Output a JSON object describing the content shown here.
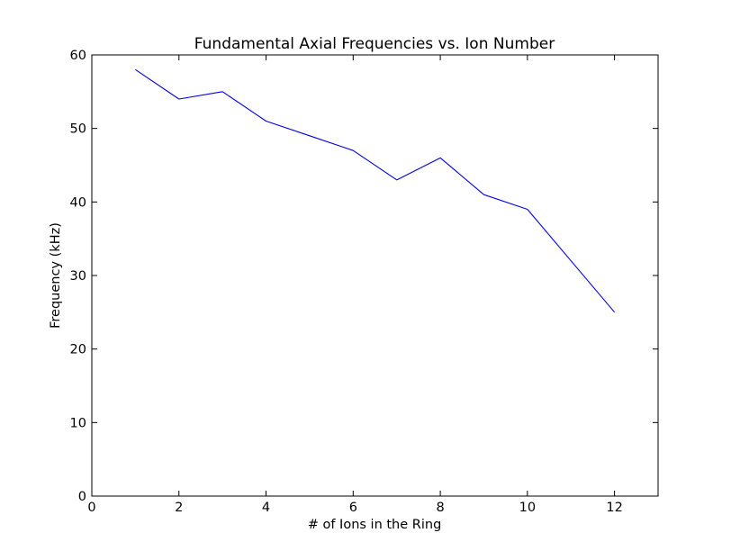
{
  "chart_data": {
    "type": "line",
    "title": "Fundamental Axial Frequencies vs. Ion Number",
    "xlabel": "# of Ions in the Ring",
    "ylabel": "Frequency (kHz)",
    "xlim": [
      0,
      13
    ],
    "ylim": [
      0,
      60
    ],
    "xticks": [
      0,
      2,
      4,
      6,
      8,
      10,
      12
    ],
    "yticks": [
      0,
      10,
      20,
      30,
      40,
      50,
      60
    ],
    "xtick_labels": [
      "0",
      "2",
      "4",
      "6",
      "8",
      "10",
      "12"
    ],
    "ytick_labels": [
      "0",
      "10",
      "20",
      "30",
      "40",
      "50",
      "60"
    ],
    "grid": false,
    "series": [
      {
        "color": "#0000ff",
        "x": [
          1,
          2,
          3,
          4,
          5,
          6,
          7,
          8,
          9,
          10,
          11,
          12
        ],
        "y": [
          58,
          54,
          55,
          51,
          49,
          47,
          43,
          46,
          41,
          39,
          32,
          25
        ]
      }
    ]
  }
}
